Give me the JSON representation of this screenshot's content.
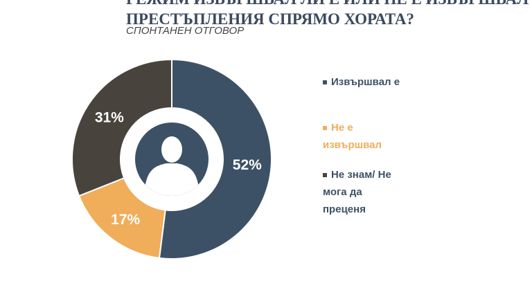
{
  "title_line1": "РЕЖИМ ИЗВЪРШВАЛ ЛИ Е ИЛИ НЕ Е ИЗВЪРШВАЛ",
  "title_line2": "ПРЕСТЪПЛЕНИЯ СПРЯМО ХОРАТА?",
  "subtitle": "СПОНТАНЕН ОТГОВОР",
  "chart_data": {
    "type": "pie",
    "donut": true,
    "categories": [
      "Извършвал е",
      "Не е извършвал",
      "Не знам/ Не мога да преценя"
    ],
    "values": [
      52,
      17,
      31
    ],
    "labels": [
      "52%",
      "17%",
      "31%"
    ],
    "colors": [
      "#3d5166",
      "#f0ad5a",
      "#48433d"
    ],
    "legend_text_colors": [
      "#3d5166",
      "#f0ad5a",
      "#3d5166"
    ],
    "legend": "right",
    "center_icon": "person-icon"
  }
}
